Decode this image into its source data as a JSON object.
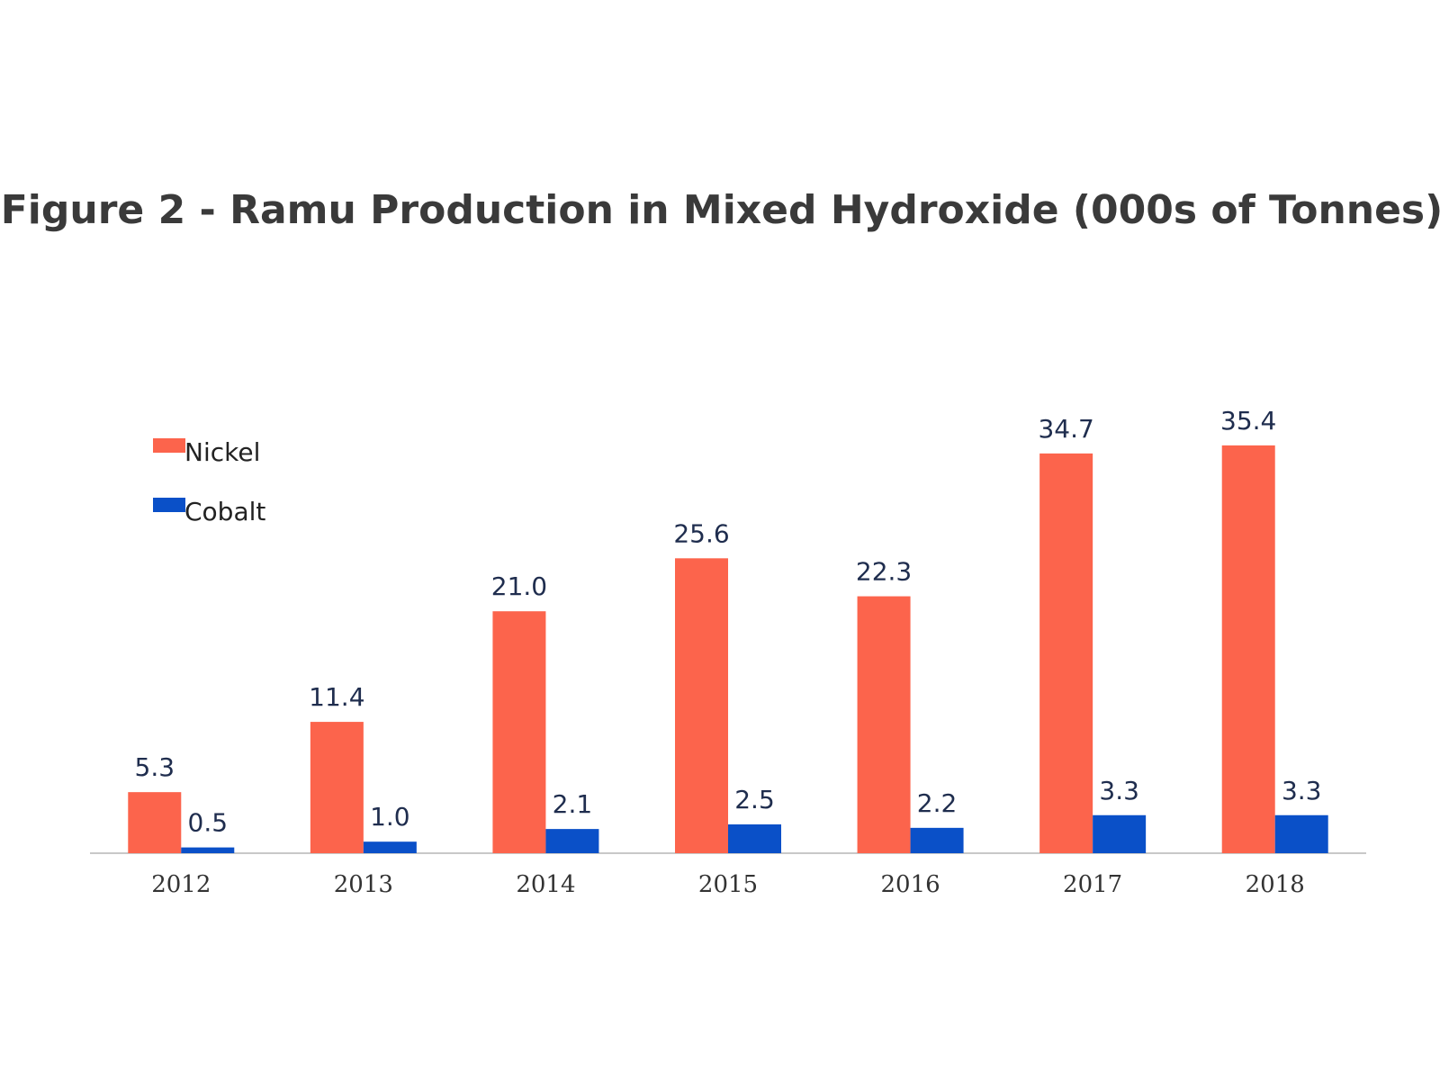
{
  "chart_data": {
    "type": "bar",
    "title": "Figure 2 - Ramu Production in Mixed Hydroxide (000s of Tonnes)",
    "categories": [
      "2012",
      "2013",
      "2014",
      "2015",
      "2016",
      "2017",
      "2018"
    ],
    "series": [
      {
        "name": "Nickel",
        "color": "#fc644c",
        "values": [
          5.3,
          11.4,
          21,
          25.6,
          22.3,
          34.7,
          35.4
        ],
        "value_labels": [
          "5.3",
          "11.4",
          "21.0",
          "25.6",
          "22.3",
          "34.7",
          "35.4"
        ]
      },
      {
        "name": "Cobalt",
        "color": "#0a50c8",
        "values": [
          0.5,
          1,
          2.1,
          2.5,
          2.2,
          3.3,
          3.3
        ],
        "value_labels": [
          "0.5",
          "1.0",
          "2.1",
          "2.5",
          "2.2",
          "3.3",
          "3.3"
        ]
      }
    ],
    "ylim": [
      0,
      40
    ],
    "legend": "top-left"
  }
}
